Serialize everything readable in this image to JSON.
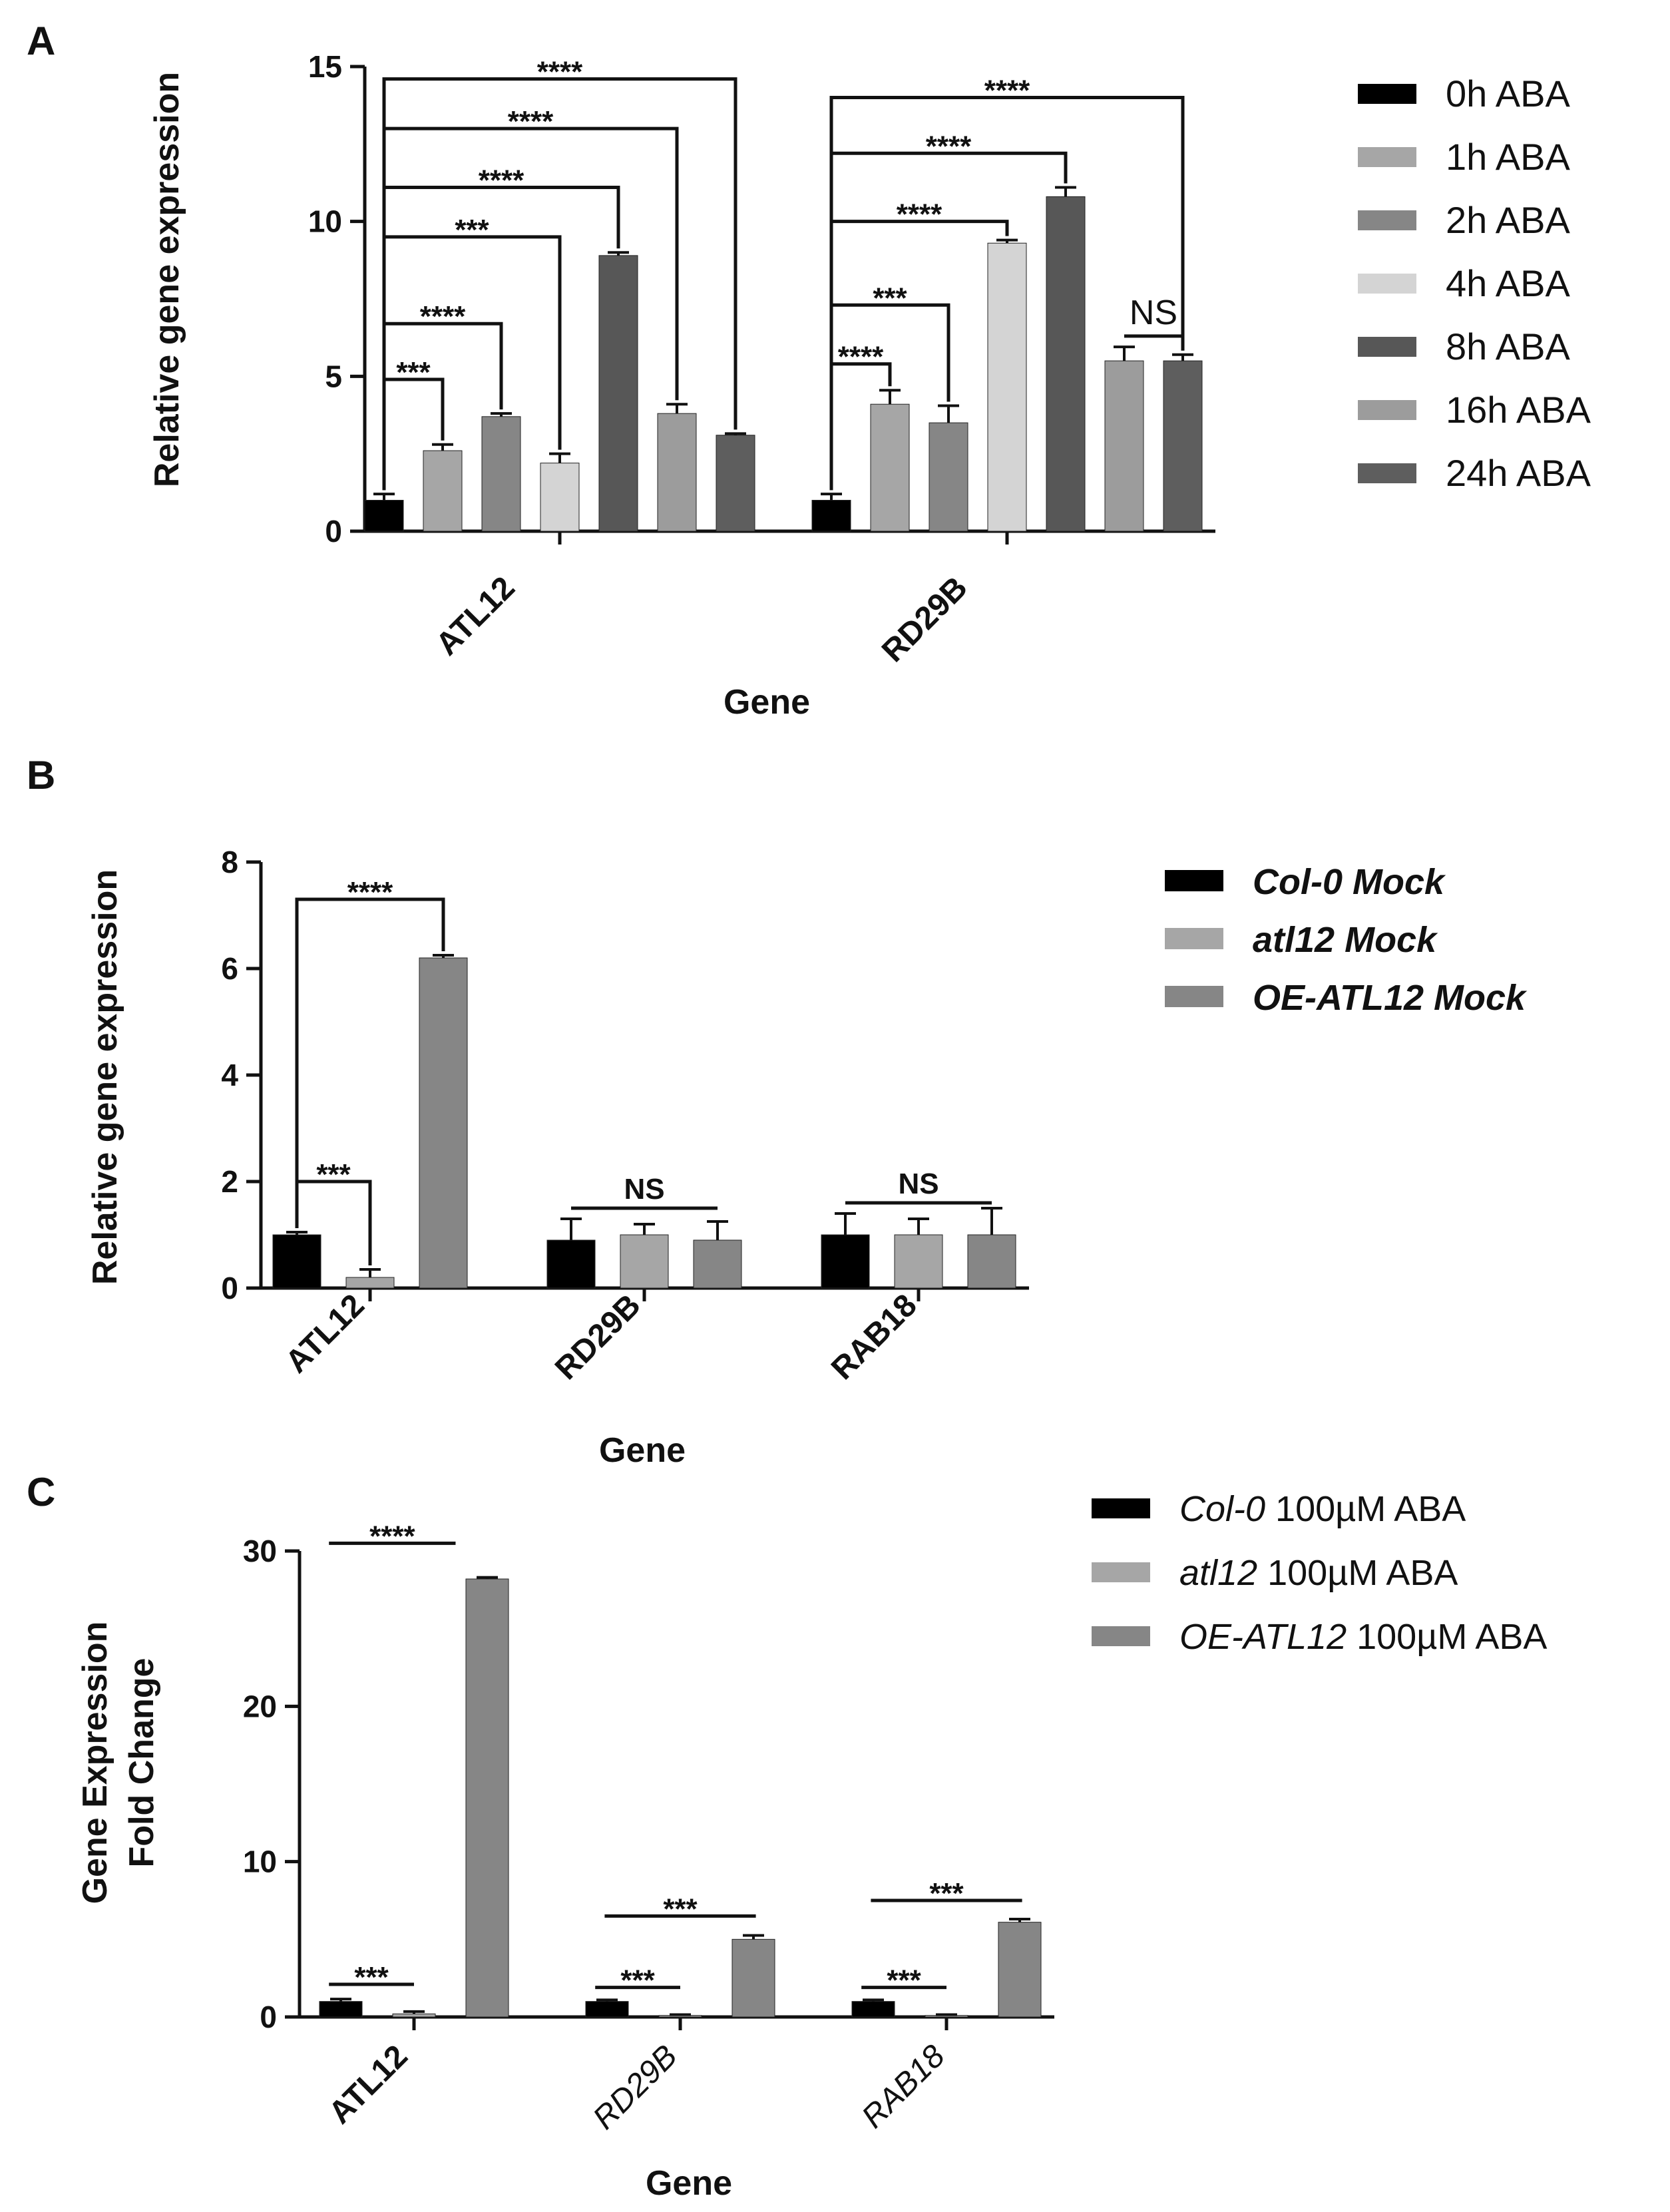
{
  "chart_data": [
    {
      "panel": "A",
      "type": "bar",
      "xlabel": "Gene",
      "ylabel": "Relative gene expression",
      "ylim": [
        0,
        15
      ],
      "yticks": [
        "0",
        "5",
        "10",
        "15"
      ],
      "categories": [
        "ATL12",
        "RD29B"
      ],
      "series": [
        {
          "name": "0h ABA",
          "color": "#000000",
          "values": [
            1.0,
            1.0
          ],
          "errors": [
            0.2,
            0.2
          ]
        },
        {
          "name": "1h ABA",
          "color": "#a6a6a6",
          "values": [
            2.6,
            4.1
          ],
          "errors": [
            0.2,
            0.45
          ]
        },
        {
          "name": "2h ABA",
          "color": "#868686",
          "values": [
            3.7,
            3.5
          ],
          "errors": [
            0.1,
            0.55
          ]
        },
        {
          "name": "4h ABA",
          "color": "#d4d4d4",
          "values": [
            2.2,
            9.3
          ],
          "errors": [
            0.3,
            0.1
          ]
        },
        {
          "name": "8h ABA",
          "color": "#575757",
          "values": [
            8.9,
            10.8
          ],
          "errors": [
            0.1,
            0.3
          ]
        },
        {
          "name": "16h ABA",
          "color": "#9c9c9c",
          "values": [
            3.8,
            5.5
          ],
          "errors": [
            0.3,
            0.45
          ]
        },
        {
          "name": "24h ABA",
          "color": "#5e5e5e",
          "values": [
            3.1,
            5.5
          ],
          "errors": [
            0.05,
            0.2
          ]
        }
      ],
      "annotations": [
        {
          "label": "***",
          "group": 0,
          "from": 0,
          "to": 1,
          "level": 4.9
        },
        {
          "label": "****",
          "group": 0,
          "from": 0,
          "to": 2,
          "level": 6.7
        },
        {
          "label": "***",
          "group": 0,
          "from": 0,
          "to": 3,
          "level": 9.5
        },
        {
          "label": "****",
          "group": 0,
          "from": 0,
          "to": 4,
          "level": 11.1
        },
        {
          "label": "****",
          "group": 0,
          "from": 0,
          "to": 5,
          "level": 13.0
        },
        {
          "label": "****",
          "group": 0,
          "from": 0,
          "to": 6,
          "level": 14.6
        },
        {
          "label": "****",
          "group": 1,
          "from": 0,
          "to": 1,
          "level": 5.4
        },
        {
          "label": "***",
          "group": 1,
          "from": 0,
          "to": 2,
          "level": 7.3
        },
        {
          "label": "****",
          "group": 1,
          "from": 0,
          "to": 3,
          "level": 10.0
        },
        {
          "label": "****",
          "group": 1,
          "from": 0,
          "to": 4,
          "level": 12.2
        },
        {
          "label": "****",
          "group": 1,
          "from": 0,
          "to": 6,
          "level": 14.0
        },
        {
          "label": "NS",
          "group": 1,
          "from": 5,
          "to": 6,
          "level": 6.3,
          "flat": true
        }
      ]
    },
    {
      "panel": "B",
      "type": "bar",
      "xlabel": "Gene",
      "ylabel": "Relative gene expression",
      "ylim": [
        0,
        8
      ],
      "yticks": [
        "0",
        "2",
        "4",
        "6",
        "8"
      ],
      "categories": [
        "ATL12",
        "RD29B",
        "RAB18"
      ],
      "series": [
        {
          "name": "Col-0 Mock",
          "color": "#000000",
          "values": [
            1.0,
            0.9,
            1.0
          ],
          "errors": [
            0.05,
            0.4,
            0.4
          ]
        },
        {
          "name": "atl12 Mock",
          "color": "#a6a6a6",
          "values": [
            0.2,
            1.0,
            1.0
          ],
          "errors": [
            0.15,
            0.2,
            0.3
          ]
        },
        {
          "name": "OE-ATL12 Mock",
          "color": "#868686",
          "values": [
            6.2,
            0.9,
            1.0
          ],
          "errors": [
            0.05,
            0.35,
            0.5
          ]
        }
      ],
      "annotations": [
        {
          "label": "***",
          "group": 0,
          "from": 0,
          "to": 1,
          "level": 2.0
        },
        {
          "label": "****",
          "group": 0,
          "from": 0,
          "to": 2,
          "level": 7.3
        },
        {
          "label": "NS",
          "group": 1,
          "from": 0,
          "to": 2,
          "level": 1.5,
          "flat": true
        },
        {
          "label": "NS",
          "group": 2,
          "from": 0,
          "to": 2,
          "level": 1.6,
          "flat": true
        }
      ]
    },
    {
      "panel": "C",
      "type": "bar",
      "xlabel": "Gene",
      "ylabel": "Gene Expression Fold Change",
      "ylabel_lines": [
        "Gene Expression",
        "Fold Change"
      ],
      "ylim": [
        0,
        30
      ],
      "yticks": [
        "0",
        "10",
        "20",
        "30"
      ],
      "categories": [
        "ATL12",
        "RD29B",
        "RAB18"
      ],
      "series": [
        {
          "name": "Col-0 100µM ABA",
          "italic": "Col-0",
          "rest": " 100µM ABA",
          "color": "#000000",
          "values": [
            1.0,
            1.0,
            1.0
          ],
          "errors": [
            0.15,
            0.1,
            0.1
          ]
        },
        {
          "name": "atl12 100µM ABA",
          "italic": "atl12",
          "rest": " 100µM ABA",
          "color": "#a6a6a6",
          "values": [
            0.2,
            0.1,
            0.1
          ],
          "errors": [
            0.15,
            0.05,
            0.05
          ]
        },
        {
          "name": "OE-ATL12 100µM ABA",
          "italic": "OE-ATL12",
          "rest": " 100µM ABA",
          "color": "#868686",
          "values": [
            28.2,
            5.0,
            6.1
          ],
          "errors": [
            0.1,
            0.25,
            0.2
          ]
        }
      ],
      "annotations": [
        {
          "label": "****",
          "group": 0,
          "from": 0,
          "to": 2,
          "level": 30.5,
          "flat": true,
          "x1": -0.45,
          "x2": 0.22
        },
        {
          "label": "***",
          "group": 0,
          "from": 0,
          "to": 1,
          "level": 2.1,
          "flat": true,
          "x1": -0.45,
          "x2": 0.0
        },
        {
          "label": "***",
          "group": 1,
          "from": 0,
          "to": 1,
          "level": 1.9,
          "flat": true,
          "x1": -0.45,
          "x2": 0.0
        },
        {
          "label": "***",
          "group": 1,
          "from": 0,
          "to": 2,
          "level": 6.5,
          "flat": true,
          "x1": -0.4,
          "x2": 0.4
        },
        {
          "label": "***",
          "group": 2,
          "from": 0,
          "to": 1,
          "level": 1.9,
          "flat": true,
          "x1": -0.45,
          "x2": 0.0
        },
        {
          "label": "***",
          "group": 2,
          "from": 0,
          "to": 2,
          "level": 7.5,
          "flat": true,
          "x1": -0.4,
          "x2": 0.4
        }
      ]
    }
  ]
}
